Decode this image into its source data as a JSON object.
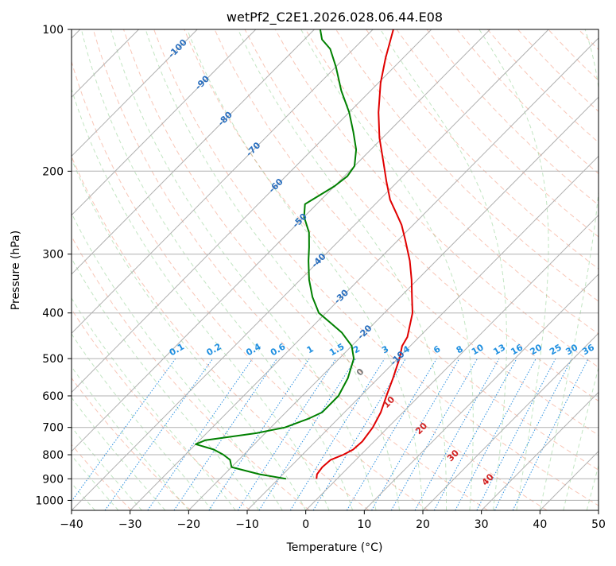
{
  "chart_data": {
    "type": "line",
    "title": "wetPf2_C2E1.2026.028.06.44.E08",
    "xlabel": "Temperature (°C)",
    "ylabel": "Pressure (hPa)",
    "xlim": [
      -40,
      50
    ],
    "ylim": [
      1050,
      100
    ],
    "y_scale": "log",
    "x_ticks": [
      -40,
      -30,
      -20,
      -10,
      0,
      10,
      20,
      30,
      40,
      50
    ],
    "y_ticks": [
      100,
      200,
      300,
      400,
      500,
      600,
      700,
      800,
      900,
      1000
    ],
    "grid": true,
    "skew": "skew-T log-P diagram",
    "series": [
      {
        "color": "#e00000",
        "points": [
          {
            "p": 900,
            "t": -3.5
          },
          {
            "p": 880,
            "t": -4.2
          },
          {
            "p": 850,
            "t": -4.5
          },
          {
            "p": 820,
            "t": -4.3
          },
          {
            "p": 800,
            "t": -3.0
          },
          {
            "p": 780,
            "t": -2.2
          },
          {
            "p": 750,
            "t": -2.0
          },
          {
            "p": 700,
            "t": -2.6
          },
          {
            "p": 650,
            "t": -3.8
          },
          {
            "p": 600,
            "t": -5.6
          },
          {
            "p": 550,
            "t": -7.5
          },
          {
            "p": 500,
            "t": -9.7
          },
          {
            "p": 470,
            "t": -11.4
          },
          {
            "p": 450,
            "t": -12.0
          },
          {
            "p": 400,
            "t": -15.2
          },
          {
            "p": 370,
            "t": -18.0
          },
          {
            "p": 340,
            "t": -21.0
          },
          {
            "p": 310,
            "t": -24.5
          },
          {
            "p": 280,
            "t": -28.8
          },
          {
            "p": 260,
            "t": -32.0
          },
          {
            "p": 245,
            "t": -35.0
          },
          {
            "p": 230,
            "t": -38.2
          },
          {
            "p": 210,
            "t": -42.0
          },
          {
            "p": 190,
            "t": -46.0
          },
          {
            "p": 170,
            "t": -50.5
          },
          {
            "p": 150,
            "t": -55.0
          },
          {
            "p": 130,
            "t": -59.6
          },
          {
            "p": 115,
            "t": -63.0
          },
          {
            "p": 100,
            "t": -66.5
          }
        ]
      },
      {
        "color": "#008000",
        "points": [
          {
            "p": 900,
            "t": -8.7
          },
          {
            "p": 880,
            "t": -14.0
          },
          {
            "p": 850,
            "t": -20.0
          },
          {
            "p": 820,
            "t": -21.5
          },
          {
            "p": 800,
            "t": -23.5
          },
          {
            "p": 780,
            "t": -26.0
          },
          {
            "p": 760,
            "t": -30.0
          },
          {
            "p": 745,
            "t": -29.0
          },
          {
            "p": 720,
            "t": -21.5
          },
          {
            "p": 700,
            "t": -17.6
          },
          {
            "p": 670,
            "t": -15.0
          },
          {
            "p": 650,
            "t": -13.8
          },
          {
            "p": 600,
            "t": -13.8
          },
          {
            "p": 550,
            "t": -15.2
          },
          {
            "p": 500,
            "t": -17.5
          },
          {
            "p": 470,
            "t": -20.0
          },
          {
            "p": 440,
            "t": -24.0
          },
          {
            "p": 420,
            "t": -27.5
          },
          {
            "p": 400,
            "t": -31.2
          },
          {
            "p": 370,
            "t": -35.0
          },
          {
            "p": 340,
            "t": -38.5
          },
          {
            "p": 310,
            "t": -41.8
          },
          {
            "p": 290,
            "t": -44.0
          },
          {
            "p": 270,
            "t": -46.5
          },
          {
            "p": 250,
            "t": -50.0
          },
          {
            "p": 235,
            "t": -52.0
          },
          {
            "p": 225,
            "t": -51.0
          },
          {
            "p": 215,
            "t": -50.0
          },
          {
            "p": 205,
            "t": -49.5
          },
          {
            "p": 195,
            "t": -50.0
          },
          {
            "p": 180,
            "t": -52.5
          },
          {
            "p": 165,
            "t": -56.0
          },
          {
            "p": 150,
            "t": -60.0
          },
          {
            "p": 135,
            "t": -65.0
          },
          {
            "p": 120,
            "t": -70.0
          },
          {
            "p": 110,
            "t": -74.0
          },
          {
            "p": 105,
            "t": -77.0
          },
          {
            "p": 100,
            "t": -79.0
          }
        ]
      }
    ],
    "dry_adiabat_labels": [
      "-100",
      "-90",
      "-80",
      "-70",
      "-60",
      "-50",
      "-40",
      "-30",
      "-20",
      "-10"
    ],
    "moist_adiabat_labels": [
      "0",
      "10",
      "20",
      "30",
      "40"
    ],
    "mixing_ratio_labels": [
      "0.1",
      "0.2",
      "0.4",
      "0.6",
      "1",
      "1.5",
      "2",
      "3",
      "4",
      "6",
      "8",
      "10",
      "13",
      "16",
      "20",
      "25",
      "30",
      "36"
    ]
  }
}
